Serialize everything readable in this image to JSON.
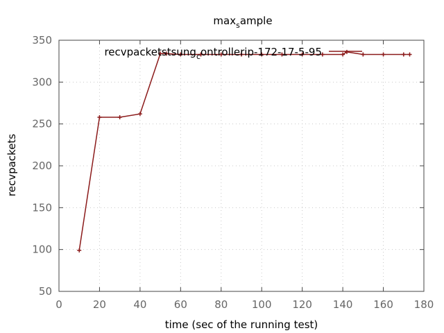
{
  "chart_data": {
    "type": "line",
    "title_main": "max",
    "title_sub": "s",
    "title_rest": "ample",
    "xlabel": "time (sec of the running test)",
    "ylabel": "recvpackets",
    "xlim": [
      0,
      180
    ],
    "ylim": [
      50,
      350
    ],
    "xticks": [
      0,
      20,
      40,
      60,
      80,
      100,
      120,
      140,
      160,
      180
    ],
    "yticks": [
      50,
      100,
      150,
      200,
      250,
      300,
      350
    ],
    "grid": true,
    "legend_placement": "top-right",
    "legend_main": "recvpacketstsung",
    "legend_sub": "c",
    "legend_rest": "ontrollerip-172-17-5-95",
    "series": [
      {
        "color": "#8b1a1a",
        "x": [
          10,
          20,
          30,
          40,
          50,
          53,
          60,
          70,
          80,
          90,
          100,
          110,
          120,
          130,
          140,
          142,
          150,
          160,
          170,
          173
        ],
        "y": [
          99,
          258,
          258,
          262,
          334,
          334,
          333,
          333,
          333,
          333,
          333,
          333,
          333,
          333,
          333,
          336,
          333,
          333,
          333,
          333
        ]
      }
    ]
  }
}
